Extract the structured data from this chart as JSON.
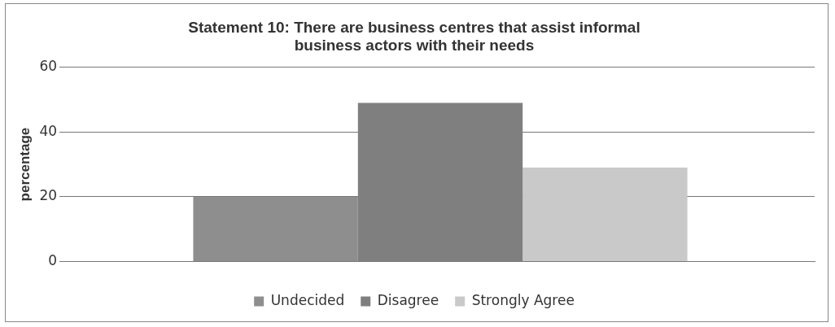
{
  "chart_data": {
    "type": "bar",
    "title": [
      "Statement 10: There are business centres that assist informal",
      "business actors with their needs"
    ],
    "ylabel": "percentage",
    "categories": [
      null
    ],
    "series": [
      {
        "name": "Undecided",
        "color": "#8e8e8e",
        "values": [
          20
        ]
      },
      {
        "name": "Disagree",
        "color": "#7f7f7f",
        "values": [
          49
        ]
      },
      {
        "name": "Strongly Agree",
        "color": "#c9c9c9",
        "values": [
          29
        ]
      }
    ],
    "ylim": [
      0,
      60
    ],
    "yticks": [
      0,
      20,
      40,
      60
    ],
    "grid": "y",
    "legend": "bottom"
  }
}
